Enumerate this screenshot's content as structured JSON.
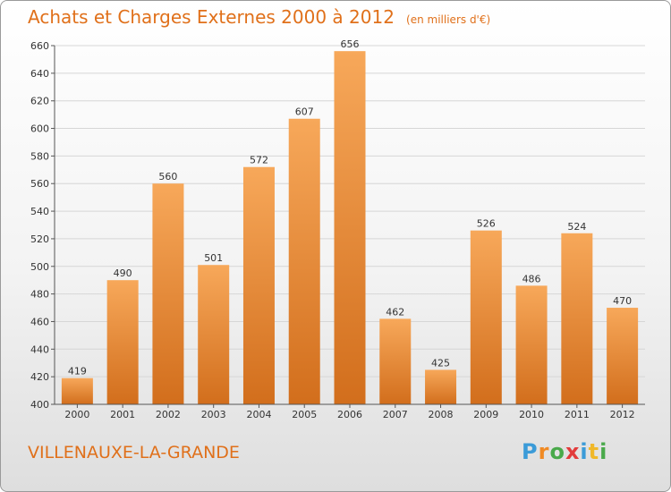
{
  "title": "Achats et Charges Externes 2000 à 2012",
  "unit": "(en milliers d'€)",
  "city": "VILLENAUXE-LA-GRANDE",
  "logo": {
    "letters": [
      "P",
      "r",
      "o",
      "x",
      "i",
      "t",
      "i"
    ],
    "colors": [
      "#3b9bd8",
      "#f08a24",
      "#49a94a",
      "#e23b3b",
      "#3b9bd8",
      "#f0b82a",
      "#49a94a"
    ]
  },
  "colors": {
    "bar_light": "#f7a85a",
    "bar_dark": "#d26e1c",
    "text": "#e0701a"
  },
  "chart_data": {
    "type": "bar",
    "categories": [
      "2000",
      "2001",
      "2002",
      "2003",
      "2004",
      "2005",
      "2006",
      "2007",
      "2008",
      "2009",
      "2010",
      "2011",
      "2012"
    ],
    "values": [
      419,
      490,
      560,
      501,
      572,
      607,
      656,
      462,
      425,
      526,
      486,
      524,
      470
    ],
    "ylim": [
      400,
      660
    ],
    "yticks": [
      400,
      420,
      440,
      460,
      480,
      500,
      520,
      540,
      560,
      580,
      600,
      620,
      640,
      660
    ],
    "grid": true
  }
}
